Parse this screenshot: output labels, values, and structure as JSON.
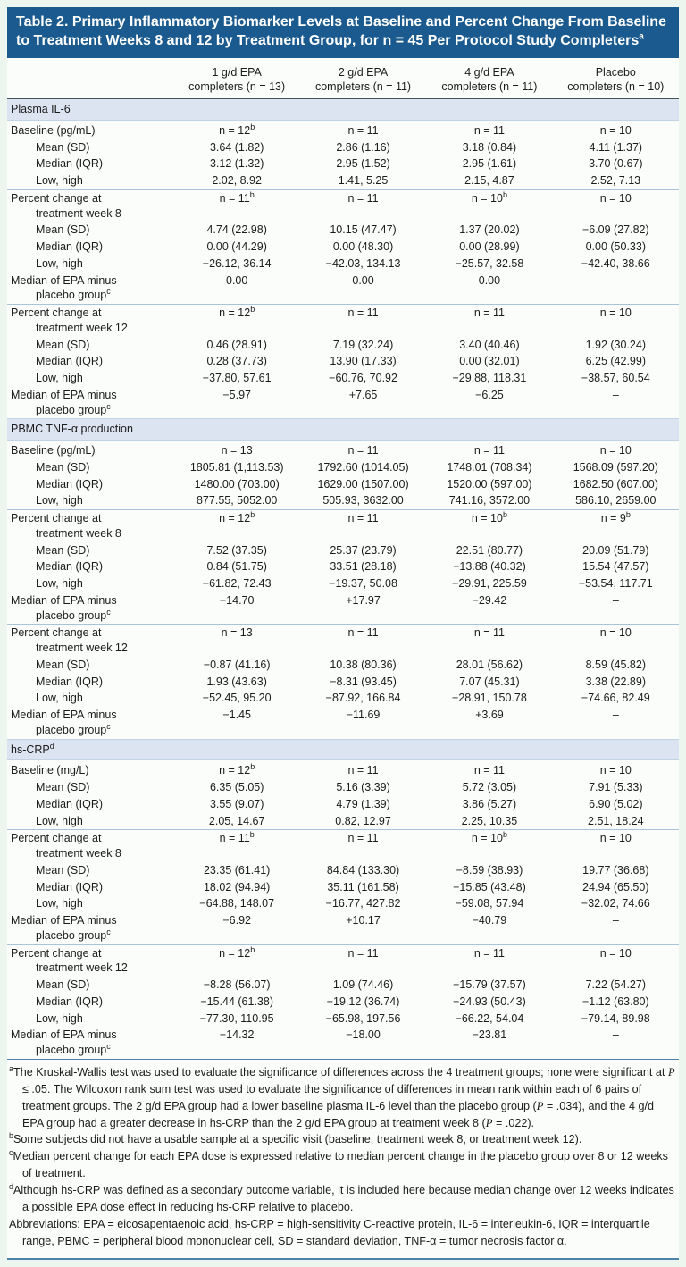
{
  "table": {
    "title": "Table 2. Primary Inflammatory Biomarker Levels at Baseline and Percent Change From Baseline to Treatment Weeks 8 and 12 by Treatment Group, for n = 45 Per Protocol Study Completers",
    "title_sup": "a",
    "colors": {
      "title_bar": "#1a5a8e",
      "section_band": "#dde4f1",
      "rule_light": "#a7c4db",
      "rule_dark": "#45525c",
      "footer_rule": "#4d82ab",
      "page_bg": "#edf5ef"
    },
    "columns": [
      {
        "line1": "1 g/d EPA",
        "line2": "completers (n = 13)"
      },
      {
        "line1": "2 g/d EPA",
        "line2": "completers (n = 11)"
      },
      {
        "line1": "4 g/d EPA",
        "line2": "completers (n = 11)"
      },
      {
        "line1": "Placebo",
        "line2": "completers (n = 10)"
      }
    ],
    "sections": [
      {
        "label": "Plasma IL-6",
        "sup": "",
        "rows": [
          {
            "lines": [
              "Baseline (pg/mL)"
            ],
            "indent": 0,
            "rule": false,
            "cells": [
              "n = 12^b",
              "n = 11",
              "n = 11",
              "n = 10"
            ]
          },
          {
            "lines": [
              "Mean (SD)"
            ],
            "indent": 1,
            "rule": false,
            "cells": [
              "3.64 (1.82)",
              "2.86 (1.16)",
              "3.18 (0.84)",
              "4.11 (1.37)"
            ]
          },
          {
            "lines": [
              "Median (IQR)"
            ],
            "indent": 1,
            "rule": false,
            "cells": [
              "3.12 (1.32)",
              "2.95 (1.52)",
              "2.95 (1.61)",
              "3.70 (0.67)"
            ]
          },
          {
            "lines": [
              "Low, high"
            ],
            "indent": 1,
            "rule": false,
            "cells": [
              "2.02, 8.92",
              "1.41, 5.25",
              "2.15, 4.87",
              "2.52, 7.13"
            ]
          },
          {
            "lines": [
              "Percent change at",
              "treatment week 8"
            ],
            "indent": 0,
            "rule": true,
            "cells": [
              "n = 11^b",
              "n = 11",
              "n = 10^b",
              "n = 10"
            ]
          },
          {
            "lines": [
              "Mean (SD)"
            ],
            "indent": 1,
            "rule": false,
            "cells": [
              "4.74 (22.98)",
              "10.15 (47.47)",
              "1.37 (20.02)",
              "−6.09 (27.82)"
            ]
          },
          {
            "lines": [
              "Median (IQR)"
            ],
            "indent": 1,
            "rule": false,
            "cells": [
              "0.00 (44.29)",
              "0.00 (48.30)",
              "0.00 (28.99)",
              "0.00 (50.33)"
            ]
          },
          {
            "lines": [
              "Low, high"
            ],
            "indent": 1,
            "rule": false,
            "cells": [
              "−26.12, 36.14",
              "−42.03, 134.13",
              "−25.57, 32.58",
              "−42.40, 38.66"
            ]
          },
          {
            "lines": [
              "Median of EPA minus",
              "placebo group"
            ],
            "sup": "c",
            "indent": 0,
            "rule": false,
            "cells": [
              "0.00",
              "0.00",
              "0.00",
              "–"
            ]
          },
          {
            "lines": [
              "Percent change at",
              "treatment week 12"
            ],
            "indent": 0,
            "rule": true,
            "cells": [
              "n = 12^b",
              "n = 11",
              "n = 11",
              "n = 10"
            ]
          },
          {
            "lines": [
              "Mean (SD)"
            ],
            "indent": 1,
            "rule": false,
            "cells": [
              "0.46 (28.91)",
              "7.19 (32.24)",
              "3.40 (40.46)",
              "1.92 (30.24)"
            ]
          },
          {
            "lines": [
              "Median (IQR)"
            ],
            "indent": 1,
            "rule": false,
            "cells": [
              "0.28 (37.73)",
              "13.90 (17.33)",
              "0.00 (32.01)",
              "6.25 (42.99)"
            ]
          },
          {
            "lines": [
              "Low, high"
            ],
            "indent": 1,
            "rule": false,
            "cells": [
              "−37.80, 57.61",
              "−60.76, 70.92",
              "−29.88, 118.31",
              "−38.57, 60.54"
            ]
          },
          {
            "lines": [
              "Median of EPA minus",
              "placebo group"
            ],
            "sup": "c",
            "indent": 0,
            "rule": false,
            "cells": [
              "−5.97",
              "+7.65",
              "−6.25",
              "–"
            ]
          }
        ]
      },
      {
        "label": "PBMC TNF-α production",
        "sup": "",
        "rows": [
          {
            "lines": [
              "Baseline (pg/mL)"
            ],
            "indent": 0,
            "rule": false,
            "cells": [
              "n = 13",
              "n = 11",
              "n = 11",
              "n = 10"
            ]
          },
          {
            "lines": [
              "Mean (SD)"
            ],
            "indent": 1,
            "rule": false,
            "cells": [
              "1805.81 (1,113.53)",
              "1792.60 (1014.05)",
              "1748.01 (708.34)",
              "1568.09 (597.20)"
            ]
          },
          {
            "lines": [
              "Median (IQR)"
            ],
            "indent": 1,
            "rule": false,
            "cells": [
              "1480.00 (703.00)",
              "1629.00 (1507.00)",
              "1520.00 (597.00)",
              "1682.50 (607.00)"
            ]
          },
          {
            "lines": [
              "Low, high"
            ],
            "indent": 1,
            "rule": false,
            "cells": [
              "877.55, 5052.00",
              "505.93, 3632.00",
              "741.16, 3572.00",
              "586.10, 2659.00"
            ]
          },
          {
            "lines": [
              "Percent change at",
              "treatment week 8"
            ],
            "indent": 0,
            "rule": true,
            "cells": [
              "n = 12^b",
              "n = 11",
              "n = 10^b",
              "n = 9^b"
            ]
          },
          {
            "lines": [
              "Mean (SD)"
            ],
            "indent": 1,
            "rule": false,
            "cells": [
              "7.52 (37.35)",
              "25.37 (23.79)",
              "22.51 (80.77)",
              "20.09 (51.79)"
            ]
          },
          {
            "lines": [
              "Median (IQR)"
            ],
            "indent": 1,
            "rule": false,
            "cells": [
              "0.84 (51.75)",
              "33.51 (28.18)",
              "−13.88 (40.32)",
              "15.54 (47.57)"
            ]
          },
          {
            "lines": [
              "Low, high"
            ],
            "indent": 1,
            "rule": false,
            "cells": [
              "−61.82, 72.43",
              "−19.37, 50.08",
              "−29.91, 225.59",
              "−53.54, 117.71"
            ]
          },
          {
            "lines": [
              "Median of EPA minus",
              "placebo group"
            ],
            "sup": "c",
            "indent": 0,
            "rule": false,
            "cells": [
              "−14.70",
              "+17.97",
              "−29.42",
              "–"
            ]
          },
          {
            "lines": [
              "Percent change at",
              "treatment week 12"
            ],
            "indent": 0,
            "rule": true,
            "cells": [
              "n = 13",
              "n = 11",
              "n = 11",
              "n = 10"
            ]
          },
          {
            "lines": [
              "Mean (SD)"
            ],
            "indent": 1,
            "rule": false,
            "cells": [
              "−0.87 (41.16)",
              "10.38 (80.36)",
              "28.01 (56.62)",
              "8.59 (45.82)"
            ]
          },
          {
            "lines": [
              "Median (IQR)"
            ],
            "indent": 1,
            "rule": false,
            "cells": [
              "1.93 (43.63)",
              "−8.31 (93.45)",
              "7.07 (45.31)",
              "3.38 (22.89)"
            ]
          },
          {
            "lines": [
              "Low, high"
            ],
            "indent": 1,
            "rule": false,
            "cells": [
              "−52.45, 95.20",
              "−87.92, 166.84",
              "−28.91, 150.78",
              "−74.66, 82.49"
            ]
          },
          {
            "lines": [
              "Median of EPA minus",
              "placebo group"
            ],
            "sup": "c",
            "indent": 0,
            "rule": false,
            "cells": [
              "−1.45",
              "−11.69",
              "+3.69",
              "–"
            ]
          }
        ]
      },
      {
        "label": "hs-CRP",
        "sup": "d",
        "rows": [
          {
            "lines": [
              "Baseline (mg/L)"
            ],
            "indent": 0,
            "rule": false,
            "cells": [
              "n = 12^b",
              "n = 11",
              "n = 11",
              "n = 10"
            ]
          },
          {
            "lines": [
              "Mean (SD)"
            ],
            "indent": 1,
            "rule": false,
            "cells": [
              "6.35 (5.05)",
              "5.16 (3.39)",
              "5.72 (3.05)",
              "7.91 (5.33)"
            ]
          },
          {
            "lines": [
              "Median (IQR)"
            ],
            "indent": 1,
            "rule": false,
            "cells": [
              "3.55 (9.07)",
              "4.79 (1.39)",
              "3.86 (5.27)",
              "6.90 (5.02)"
            ]
          },
          {
            "lines": [
              "Low, high"
            ],
            "indent": 1,
            "rule": false,
            "cells": [
              "2.05, 14.67",
              "0.82, 12.97",
              "2.25, 10.35",
              "2.51, 18.24"
            ]
          },
          {
            "lines": [
              "Percent change at",
              "treatment week 8"
            ],
            "indent": 0,
            "rule": true,
            "cells": [
              "n = 11^b",
              "n = 11",
              "n = 10^b",
              "n = 10"
            ]
          },
          {
            "lines": [
              "Mean (SD)"
            ],
            "indent": 1,
            "rule": false,
            "cells": [
              "23.35 (61.41)",
              "84.84 (133.30)",
              "−8.59 (38.93)",
              "19.77 (36.68)"
            ]
          },
          {
            "lines": [
              "Median (IQR)"
            ],
            "indent": 1,
            "rule": false,
            "cells": [
              "18.02 (94.94)",
              "35.11 (161.58)",
              "−15.85 (43.48)",
              "24.94 (65.50)"
            ]
          },
          {
            "lines": [
              "Low, high"
            ],
            "indent": 1,
            "rule": false,
            "cells": [
              "−64.88, 148.07",
              "−16.77, 427.82",
              "−59.08, 57.94",
              "−32.02, 74.66"
            ]
          },
          {
            "lines": [
              "Median of EPA minus",
              "placebo group"
            ],
            "sup": "c",
            "indent": 0,
            "rule": false,
            "cells": [
              "−6.92",
              "+10.17",
              "−40.79",
              "–"
            ]
          },
          {
            "lines": [
              "Percent change at",
              "treatment week 12"
            ],
            "indent": 0,
            "rule": true,
            "cells": [
              "n = 12^b",
              "n = 11",
              "n = 11",
              "n = 10"
            ]
          },
          {
            "lines": [
              "Mean (SD)"
            ],
            "indent": 1,
            "rule": false,
            "cells": [
              "−8.28 (56.07)",
              "1.09 (74.46)",
              "−15.79 (37.57)",
              "7.22 (54.27)"
            ]
          },
          {
            "lines": [
              "Median (IQR)"
            ],
            "indent": 1,
            "rule": false,
            "cells": [
              "−15.44 (61.38)",
              "−19.12 (36.74)",
              "−24.93 (50.43)",
              "−1.12 (63.80)"
            ]
          },
          {
            "lines": [
              "Low, high"
            ],
            "indent": 1,
            "rule": false,
            "cells": [
              "−77.30, 110.95",
              "−65.98, 197.56",
              "−66.22, 54.04",
              "−79.14, 89.98"
            ]
          },
          {
            "lines": [
              "Median of EPA minus",
              "placebo group"
            ],
            "sup": "c",
            "indent": 0,
            "rule": false,
            "cells": [
              "−14.32",
              "−18.00",
              "−23.81",
              "–"
            ]
          }
        ]
      }
    ]
  },
  "footnotes": {
    "items": [
      {
        "sup": "a",
        "text": "The Kruskal-Wallis test was used to evaluate the significance of differences across the 4 treatment groups; none were significant at P ≤ .05. The Wilcoxon rank sum test was used to evaluate the significance of differences in mean rank within each of 6 pairs of treatment groups. The 2 g/d EPA group had a lower baseline plasma IL-6 level than the placebo group (P = .034), and the 4 g/d EPA group had a greater decrease in hs-CRP than the 2 g/d EPA group at treatment week 8 (P = .022)."
      },
      {
        "sup": "b",
        "text": "Some subjects did not have a usable sample at a specific visit (baseline, treatment week 8, or treatment week 12)."
      },
      {
        "sup": "c",
        "text": "Median percent change for each EPA dose is expressed relative to median percent change in the placebo group over 8 or 12 weeks of treatment."
      },
      {
        "sup": "d",
        "text": "Although hs-CRP was defined as a secondary outcome variable, it is included here because median change over 12 weeks indicates a possible EPA dose effect in reducing hs-CRP relative to placebo."
      }
    ],
    "abbreviations": "Abbreviations: EPA = eicosapentaenoic acid, hs-CRP = high-sensitivity C-reactive protein, IL-6 = interleukin-6, IQR = interquartile range, PBMC = peripheral blood mononuclear cell, SD = standard deviation, TNF-α = tumor necrosis factor α."
  }
}
